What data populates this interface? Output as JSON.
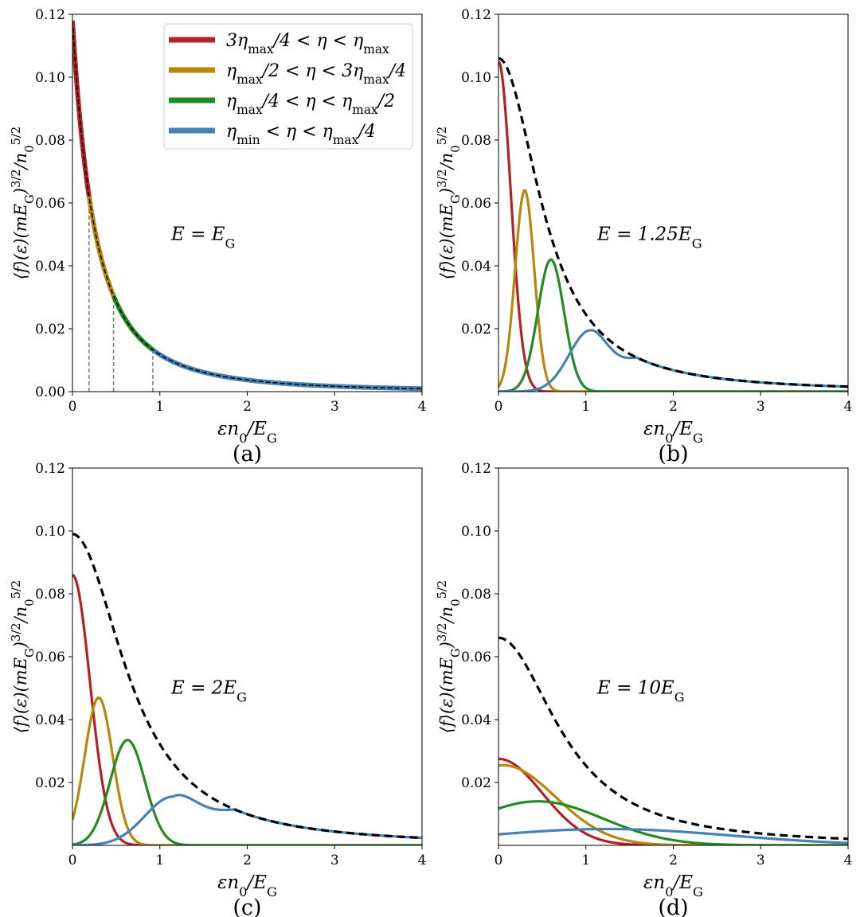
{
  "colors": {
    "red": "#b22222",
    "gold": "#b8860b",
    "green": "#228b22",
    "blue": "#4682b4",
    "total": "#000000",
    "guide": "#808080"
  },
  "legend": [
    {
      "label": "3ηmax/4 < η < ηmax",
      "color": "#b22222"
    },
    {
      "label": "ηmax/2 < η < 3ηmax/4",
      "color": "#b8860b"
    },
    {
      "label": "ηmax/4 < η < ηmax/2",
      "color": "#228b22"
    },
    {
      "label": "ηmin < η < ηmax/4",
      "color": "#4682b4"
    }
  ],
  "chart_data": [
    {
      "type": "line",
      "panel_label": "(a)",
      "annotation": "E = EG",
      "xlabel": "εn0/EG",
      "ylabel": "⟨f⟩(ε)(mEG)3/2/n05/2",
      "xlim": [
        0,
        4
      ],
      "ylim": [
        0,
        0.12
      ],
      "xticks": [
        "0",
        "1",
        "2",
        "3",
        "4"
      ],
      "yticks": [
        "0.00",
        "0.02",
        "0.04",
        "0.06",
        "0.08",
        "0.10",
        "0.12"
      ],
      "total_curve": {
        "name": "total",
        "style": "dashed",
        "amplitude": 0.118,
        "decay": 0.4,
        "power": 1.45
      },
      "segment_boundaries": [
        0.0,
        0.19,
        0.47,
        0.92,
        4.0
      ],
      "guide_lines_x": [
        0.19,
        0.47,
        0.92
      ],
      "series": [
        {
          "name": "3ηmax/4 < η < ηmax",
          "x_range": [
            0.0,
            0.19
          ]
        },
        {
          "name": "ηmax/2 < η < 3ηmax/4",
          "x_range": [
            0.19,
            0.47
          ]
        },
        {
          "name": "ηmax/4 < η < ηmax/2",
          "x_range": [
            0.47,
            0.92
          ]
        },
        {
          "name": "ηmin < η < ηmax/4",
          "x_range": [
            0.92,
            4.0
          ]
        }
      ]
    },
    {
      "type": "line",
      "panel_label": "(b)",
      "annotation": "E = 1.25EG",
      "xlabel": "εn0/EG",
      "ylabel": "⟨f⟩(ε)(mEG)3/2/n05/2",
      "xlim": [
        0,
        4
      ],
      "ylim": [
        0,
        0.12
      ],
      "xticks": [
        "0",
        "1",
        "2",
        "3",
        "4"
      ],
      "yticks": [
        "0.02",
        "0.04",
        "0.06",
        "0.08",
        "0.10",
        "0.12"
      ],
      "total_curve": {
        "name": "total",
        "style": "dashed",
        "amplitude": 0.106,
        "s": 0.6,
        "power": 1.1
      },
      "series": [
        {
          "name": "3ηmax/4 < η < ηmax",
          "peak": 0.105,
          "center": 0.0,
          "width": 0.14
        },
        {
          "name": "ηmax/2 < η < 3ηmax/4",
          "peak": 0.064,
          "center": 0.3,
          "width": 0.11
        },
        {
          "name": "ηmax/4 < η < ηmax/2",
          "peak": 0.042,
          "center": 0.6,
          "width": 0.15
        },
        {
          "name": "ηmin < η < ηmax/4",
          "peak": 0.0195,
          "center": 1.05,
          "width": 0.24,
          "merge_tail": true
        }
      ]
    },
    {
      "type": "line",
      "panel_label": "(c)",
      "annotation": "E = 2EG",
      "xlabel": "εn0/EG",
      "ylabel": "⟨f⟩(ε)(mEG)3/2/n05/2",
      "xlim": [
        0,
        4
      ],
      "ylim": [
        0,
        0.12
      ],
      "xticks": [
        "0",
        "1",
        "2",
        "3",
        "4"
      ],
      "yticks": [
        "0.02",
        "0.04",
        "0.06",
        "0.08",
        "0.10",
        "0.12"
      ],
      "total_curve": {
        "name": "total",
        "style": "dashed",
        "amplitude": 0.099,
        "s": 0.75,
        "power": 1.1
      },
      "series": [
        {
          "name": "3ηmax/4 < η < ηmax",
          "peak": 0.086,
          "center": 0.0,
          "width": 0.2
        },
        {
          "name": "ηmax/2 < η < 3ηmax/4",
          "peak": 0.047,
          "center": 0.3,
          "width": 0.16
        },
        {
          "name": "ηmax/4 < η < ηmax/2",
          "peak": 0.0335,
          "center": 0.63,
          "width": 0.2
        },
        {
          "name": "ηmin < η < ηmax/4",
          "peak": 0.0155,
          "center": 1.15,
          "width": 0.32,
          "merge_tail": true
        }
      ]
    },
    {
      "type": "line",
      "panel_label": "(d)",
      "annotation": "E = 10EG",
      "xlabel": "εn0/EG",
      "ylabel": "⟨f⟩(ε)(mEG)3/2/n05/2",
      "xlim": [
        0,
        4
      ],
      "ylim": [
        0,
        0.12
      ],
      "xticks": [
        "0",
        "1",
        "2",
        "3",
        "4"
      ],
      "yticks": [
        "0.02",
        "0.04",
        "0.06",
        "0.08",
        "0.10",
        "0.12"
      ],
      "total_curve": {
        "name": "total",
        "style": "dashed",
        "amplitude": 0.066,
        "s": 0.85,
        "power": 1.1
      },
      "series": [
        {
          "name": "3ηmax/4 < η < ηmax",
          "peak": 0.0275,
          "center": 0.0,
          "width": 0.5
        },
        {
          "name": "ηmax/2 < η < 3ηmax/4",
          "peak": 0.0255,
          "center": 0.05,
          "width": 0.6
        },
        {
          "name": "ηmax/4 < η < ηmax/2",
          "peak": 0.014,
          "center": 0.45,
          "width": 0.75
        },
        {
          "name": "ηmin < η < ηmax/4",
          "peak": 0.0052,
          "center": 1.25,
          "width": 1.4
        }
      ]
    }
  ]
}
